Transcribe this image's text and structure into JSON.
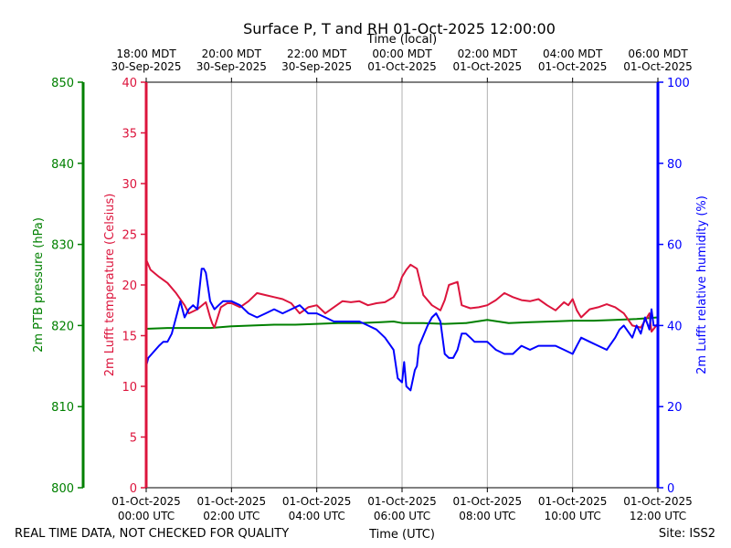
{
  "chart_data": {
    "type": "line",
    "title": "Surface P, T and RH 01-Oct-2025 12:00:00",
    "top_axis_label": "Time (local)",
    "xlabel": "Time (UTC)",
    "footer_left": "REAL TIME DATA, NOT CHECKED FOR QUALITY",
    "footer_right": "Site: ISS2",
    "x_range_hours": [
      0,
      12
    ],
    "x_ticks_bottom": [
      {
        "h": 0,
        "l1": "01-Oct-2025",
        "l2": "00:00 UTC"
      },
      {
        "h": 2,
        "l1": "01-Oct-2025",
        "l2": "02:00 UTC"
      },
      {
        "h": 4,
        "l1": "01-Oct-2025",
        "l2": "04:00 UTC"
      },
      {
        "h": 6,
        "l1": "01-Oct-2025",
        "l2": "06:00 UTC"
      },
      {
        "h": 8,
        "l1": "01-Oct-2025",
        "l2": "08:00 UTC"
      },
      {
        "h": 10,
        "l1": "01-Oct-2025",
        "l2": "10:00 UTC"
      },
      {
        "h": 12,
        "l1": "01-Oct-2025",
        "l2": "12:00 UTC"
      }
    ],
    "x_ticks_top": [
      {
        "h": 0,
        "l1": "18:00 MDT",
        "l2": "30-Sep-2025"
      },
      {
        "h": 2,
        "l1": "20:00 MDT",
        "l2": "30-Sep-2025"
      },
      {
        "h": 4,
        "l1": "22:00 MDT",
        "l2": "30-Sep-2025"
      },
      {
        "h": 6,
        "l1": "00:00 MDT",
        "l2": "01-Oct-2025"
      },
      {
        "h": 8,
        "l1": "02:00 MDT",
        "l2": "01-Oct-2025"
      },
      {
        "h": 10,
        "l1": "04:00 MDT",
        "l2": "01-Oct-2025"
      },
      {
        "h": 12,
        "l1": "06:00 MDT",
        "l2": "01-Oct-2025"
      }
    ],
    "axes": {
      "pressure": {
        "label": "2m PTB pressure (hPa)",
        "range": [
          800,
          850
        ],
        "ticks": [
          800,
          810,
          820,
          830,
          840,
          850
        ],
        "color": "#008000"
      },
      "temperature": {
        "label": "2m Lufft temperature (Celsius)",
        "range": [
          0,
          40
        ],
        "ticks": [
          0,
          5,
          10,
          15,
          20,
          25,
          30,
          35,
          40
        ],
        "color": "#dc143c"
      },
      "humidity": {
        "label": "2m Lufft relative humidity (%)",
        "range": [
          0,
          100
        ],
        "ticks": [
          0,
          20,
          40,
          60,
          80,
          100
        ],
        "color": "#0000ff"
      }
    },
    "series": [
      {
        "name": "2m PTB pressure",
        "axis": "pressure",
        "color": "#008000",
        "x": [
          0,
          0.5,
          1,
          1.5,
          2,
          2.5,
          3,
          3.5,
          4,
          4.5,
          5,
          5.5,
          5.8,
          6,
          6.5,
          7,
          7.5,
          8,
          8.5,
          9,
          9.5,
          10,
          10.5,
          11,
          11.5,
          12
        ],
        "values": [
          819.6,
          819.7,
          819.7,
          819.7,
          819.9,
          820.0,
          820.1,
          820.1,
          820.2,
          820.3,
          820.3,
          820.4,
          820.5,
          820.3,
          820.3,
          820.2,
          820.3,
          820.7,
          820.3,
          820.4,
          820.5,
          820.6,
          820.6,
          820.7,
          820.8,
          821.0
        ]
      },
      {
        "name": "2m Lufft temperature",
        "axis": "temperature",
        "color": "#dc143c",
        "x": [
          0,
          0.1,
          0.3,
          0.5,
          0.7,
          0.9,
          1.0,
          1.2,
          1.4,
          1.5,
          1.55,
          1.6,
          1.75,
          1.9,
          2.0,
          2.2,
          2.4,
          2.6,
          2.8,
          3.0,
          3.2,
          3.4,
          3.6,
          3.8,
          4.0,
          4.2,
          4.4,
          4.6,
          4.8,
          5.0,
          5.2,
          5.4,
          5.6,
          5.8,
          5.9,
          6.0,
          6.1,
          6.2,
          6.35,
          6.5,
          6.7,
          6.9,
          7.0,
          7.1,
          7.3,
          7.4,
          7.6,
          7.8,
          8.0,
          8.2,
          8.4,
          8.6,
          8.8,
          9.0,
          9.2,
          9.4,
          9.6,
          9.8,
          9.9,
          10.0,
          10.1,
          10.2,
          10.4,
          10.6,
          10.8,
          11.0,
          11.2,
          11.4,
          11.6,
          11.8,
          11.85,
          12.0
        ],
        "values": [
          22.5,
          21.5,
          20.8,
          20.2,
          19.2,
          18.0,
          17.2,
          17.6,
          18.3,
          16.8,
          16.2,
          15.8,
          17.8,
          18.2,
          18.2,
          17.8,
          18.4,
          19.2,
          19.0,
          18.8,
          18.6,
          18.2,
          17.2,
          17.8,
          18.0,
          17.2,
          17.8,
          18.4,
          18.3,
          18.4,
          18.0,
          18.2,
          18.3,
          18.8,
          19.5,
          20.8,
          21.5,
          22.0,
          21.6,
          19.0,
          18.0,
          17.5,
          18.5,
          20.0,
          20.3,
          18.0,
          17.7,
          17.8,
          18.0,
          18.5,
          19.2,
          18.8,
          18.5,
          18.4,
          18.6,
          18.0,
          17.5,
          18.3,
          18.0,
          18.6,
          17.5,
          16.8,
          17.6,
          17.8,
          18.1,
          17.8,
          17.2,
          16.0,
          15.8,
          17.2,
          15.4,
          16.2
        ]
      },
      {
        "name": "2m Lufft relative humidity",
        "axis": "humidity",
        "color": "#0000ff",
        "x": [
          0,
          0.05,
          0.3,
          0.4,
          0.5,
          0.6,
          0.7,
          0.8,
          0.9,
          1.0,
          1.1,
          1.2,
          1.3,
          1.35,
          1.4,
          1.5,
          1.6,
          1.7,
          1.8,
          2.0,
          2.2,
          2.4,
          2.6,
          2.8,
          3.0,
          3.2,
          3.4,
          3.6,
          3.8,
          4.0,
          4.2,
          4.4,
          4.6,
          4.8,
          5.0,
          5.2,
          5.4,
          5.6,
          5.8,
          5.9,
          6.0,
          6.05,
          6.1,
          6.2,
          6.3,
          6.35,
          6.4,
          6.6,
          6.7,
          6.8,
          6.9,
          7.0,
          7.1,
          7.2,
          7.3,
          7.4,
          7.5,
          7.6,
          7.7,
          7.8,
          8.0,
          8.2,
          8.4,
          8.6,
          8.8,
          9.0,
          9.2,
          9.4,
          9.6,
          9.8,
          10.0,
          10.1,
          10.2,
          10.4,
          10.6,
          10.8,
          11.0,
          11.1,
          11.2,
          11.4,
          11.5,
          11.6,
          11.7,
          11.8,
          11.85,
          11.9,
          12.0
        ],
        "values": [
          30,
          32,
          35,
          36,
          36,
          38,
          42,
          46,
          42,
          44,
          45,
          44,
          54,
          54,
          53,
          46,
          44,
          45,
          46,
          46,
          45,
          43,
          42,
          43,
          44,
          43,
          44,
          45,
          43,
          43,
          42,
          41,
          41,
          41,
          41,
          40,
          39,
          37,
          34,
          27,
          26,
          31,
          25,
          24,
          29,
          30,
          35,
          40,
          42,
          43,
          41,
          33,
          32,
          32,
          34,
          38,
          38,
          37,
          36,
          36,
          36,
          34,
          33,
          33,
          35,
          34,
          35,
          35,
          35,
          34,
          33,
          35,
          37,
          36,
          35,
          34,
          37,
          39,
          40,
          37,
          40,
          38,
          42,
          39,
          44,
          40,
          40
        ]
      }
    ]
  }
}
